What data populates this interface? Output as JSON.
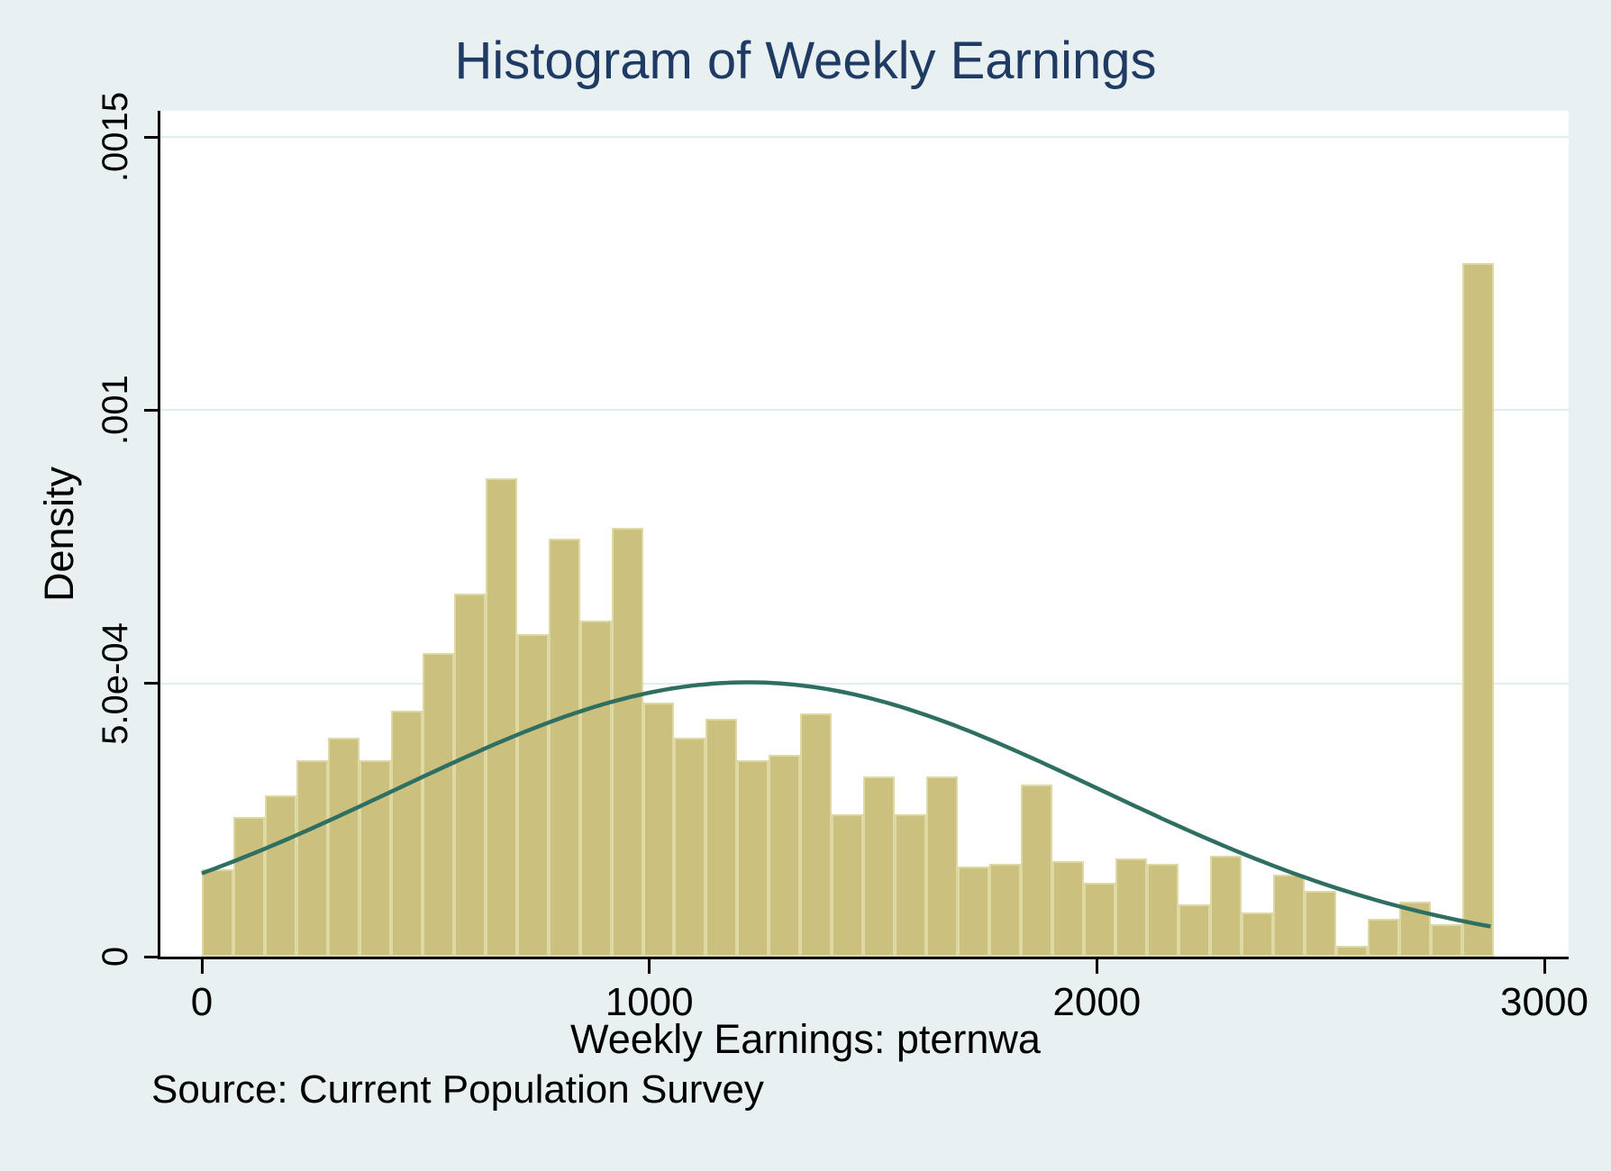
{
  "header": {
    "title": "Histogram of Weekly Earnings"
  },
  "note": "Source: Current Population Survey",
  "colors": {
    "page_background": "#e9f0f2",
    "plot_background": "#ffffff",
    "gridline": "#e2edf0",
    "bar_fill": "#ccc07e",
    "bar_edge": "#ded8a4",
    "curve": "#2e6f62",
    "axis": "#000000",
    "title_text": "#1f3a63",
    "label_text": "#000000"
  },
  "chart_data": {
    "type": "bar",
    "subtype": "histogram-with-normal-curve",
    "title": "Histogram of Weekly Earnings",
    "xlabel": "Weekly Earnings: pternwa",
    "ylabel": "Density",
    "note": "Source: Current Population Survey",
    "grid": true,
    "legend": false,
    "xlim": [
      0,
      3000
    ],
    "ylim": [
      0,
      0.0015
    ],
    "x_ticks": [
      {
        "v": 0,
        "label": "0"
      },
      {
        "v": 1000,
        "label": "1000"
      },
      {
        "v": 2000,
        "label": "2000"
      },
      {
        "v": 3000,
        "label": "3000"
      }
    ],
    "y_ticks": [
      {
        "v": 0,
        "label": "0"
      },
      {
        "v": 0.0005,
        "label": "5.0e-04"
      },
      {
        "v": 0.001,
        "label": ".001"
      },
      {
        "v": 0.0015,
        "label": ".0015"
      }
    ],
    "bins": {
      "start": 0,
      "width": 70.4,
      "count": 41,
      "densities": [
        0.00016,
        0.000255,
        0.000295,
        0.00036,
        0.0004,
        0.00036,
        0.00045,
        0.000555,
        0.000665,
        0.000875,
        0.00059,
        0.000765,
        0.000615,
        0.000785,
        0.000465,
        0.0004,
        0.000435,
        0.00036,
        0.00037,
        0.000445,
        0.00026,
        0.00033,
        0.00026,
        0.00033,
        0.000165,
        0.00017,
        0.000315,
        0.000175,
        0.000135,
        0.00018,
        0.00017,
        9.5e-05,
        0.000185,
        8e-05,
        0.00015,
        0.00012,
        2e-05,
        7e-05,
        0.0001,
        6e-05,
        0.00127
      ]
    },
    "normal_fit": {
      "mean": 1220,
      "sd": 790,
      "peak_density": 0.000502
    }
  }
}
